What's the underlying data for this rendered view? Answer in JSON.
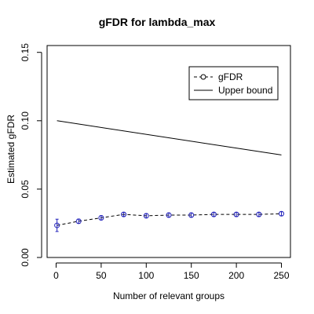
{
  "chart_data": {
    "type": "line",
    "title": "gFDR for lambda_max",
    "xlabel": "Number of relevant groups",
    "ylabel": "Estimated gFDR",
    "xlim": [
      -10,
      260
    ],
    "ylim": [
      0,
      0.155
    ],
    "xticks": [
      0,
      50,
      100,
      150,
      200,
      250
    ],
    "xtick_labels": [
      "0",
      "50",
      "100",
      "150",
      "200",
      "250"
    ],
    "yticks": [
      0.0,
      0.05,
      0.1,
      0.15
    ],
    "ytick_labels": [
      "0.00",
      "0.05",
      "0.10",
      "0.15"
    ],
    "grid": false,
    "legend": {
      "position": "top-right",
      "entries": [
        {
          "label": "gFDR",
          "style": "dashed-circle"
        },
        {
          "label": "Upper bound",
          "style": "solid"
        }
      ]
    },
    "series": [
      {
        "name": "gFDR",
        "style": "dashed line, open circles, error bars",
        "color": "#000000",
        "marker_color": "#2222bb",
        "x": [
          1,
          25,
          50,
          75,
          100,
          125,
          150,
          175,
          200,
          225,
          250
        ],
        "y": [
          0.0235,
          0.0265,
          0.029,
          0.0315,
          0.0305,
          0.031,
          0.031,
          0.0315,
          0.0315,
          0.0315,
          0.032
        ],
        "err": [
          0.0045,
          0.0015,
          0.0015,
          0.0015,
          0.0015,
          0.0015,
          0.0015,
          0.0015,
          0.0015,
          0.0015,
          0.0015
        ]
      },
      {
        "name": "Upper bound",
        "style": "solid line",
        "color": "#000000",
        "x": [
          1,
          250
        ],
        "y": [
          0.1,
          0.075
        ]
      }
    ]
  }
}
